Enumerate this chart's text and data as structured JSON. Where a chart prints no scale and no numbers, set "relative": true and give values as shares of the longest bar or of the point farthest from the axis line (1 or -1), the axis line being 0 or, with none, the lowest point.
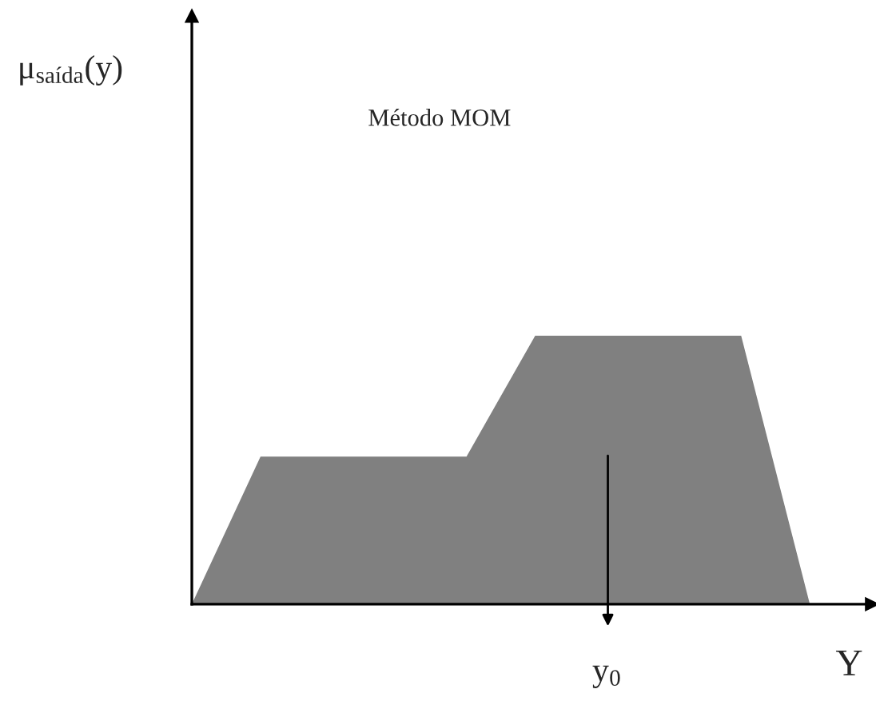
{
  "chart_data": {
    "type": "area",
    "relative": true,
    "xlabel": "Y",
    "categories": [
      null,
      null,
      null,
      null,
      null,
      null,
      null,
      null,
      null,
      null
    ],
    "series": [
      {
        "color": "#808080",
        "values": [
          0,
          0.55,
          0.55,
          0.55,
          0.55,
          1,
          1,
          1,
          1,
          0
        ]
      }
    ],
    "annotations": [
      "μ$_{saída}$(y)",
      "Método MOM",
      "y$_{0}$"
    ],
    "legend": false
  }
}
